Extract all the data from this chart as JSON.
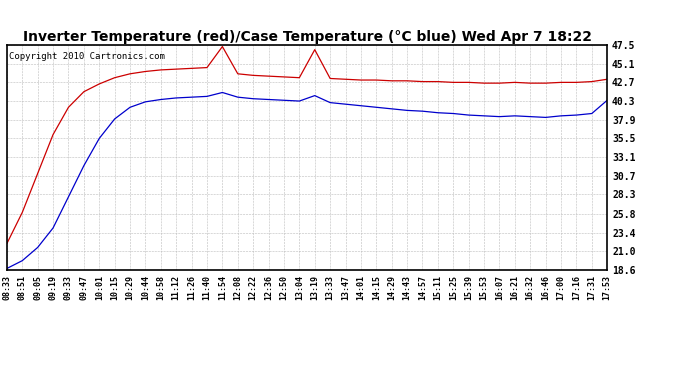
{
  "title": "Inverter Temperature (red)/Case Temperature (°C blue) Wed Apr 7 18:22",
  "copyright": "Copyright 2010 Cartronics.com",
  "yticks": [
    18.6,
    21.0,
    23.4,
    25.8,
    28.3,
    30.7,
    33.1,
    35.5,
    37.9,
    40.3,
    42.7,
    45.1,
    47.5
  ],
  "x_labels": [
    "08:33",
    "08:51",
    "09:05",
    "09:19",
    "09:33",
    "09:47",
    "10:01",
    "10:15",
    "10:29",
    "10:44",
    "10:58",
    "11:12",
    "11:26",
    "11:40",
    "11:54",
    "12:08",
    "12:22",
    "12:36",
    "12:50",
    "13:04",
    "13:19",
    "13:33",
    "13:47",
    "14:01",
    "14:15",
    "14:29",
    "14:43",
    "14:57",
    "15:11",
    "15:25",
    "15:39",
    "15:53",
    "16:07",
    "16:21",
    "16:32",
    "16:46",
    "17:00",
    "17:16",
    "17:31",
    "17:53"
  ],
  "red_values": [
    22.0,
    26.0,
    31.0,
    36.0,
    39.5,
    41.5,
    42.5,
    43.3,
    43.8,
    44.1,
    44.3,
    44.4,
    44.5,
    44.6,
    47.3,
    43.8,
    43.6,
    43.5,
    43.4,
    43.3,
    46.9,
    43.2,
    43.1,
    43.0,
    43.0,
    42.9,
    42.9,
    42.8,
    42.8,
    42.7,
    42.7,
    42.6,
    42.6,
    42.7,
    42.6,
    42.6,
    42.7,
    42.7,
    42.8,
    43.1
  ],
  "blue_values": [
    18.8,
    19.8,
    21.5,
    24.0,
    28.0,
    32.0,
    35.5,
    38.0,
    39.5,
    40.2,
    40.5,
    40.7,
    40.8,
    40.9,
    41.4,
    40.8,
    40.6,
    40.5,
    40.4,
    40.3,
    41.0,
    40.1,
    39.9,
    39.7,
    39.5,
    39.3,
    39.1,
    39.0,
    38.8,
    38.7,
    38.5,
    38.4,
    38.3,
    38.4,
    38.3,
    38.2,
    38.4,
    38.5,
    38.7,
    40.4
  ],
  "red_color": "#cc0000",
  "blue_color": "#0000cc",
  "bg_color": "#ffffff",
  "grid_color": "#bbbbbb",
  "ymin": 18.6,
  "ymax": 47.5,
  "title_fontsize": 10,
  "tick_fontsize": 7,
  "copyright_fontsize": 6.5
}
